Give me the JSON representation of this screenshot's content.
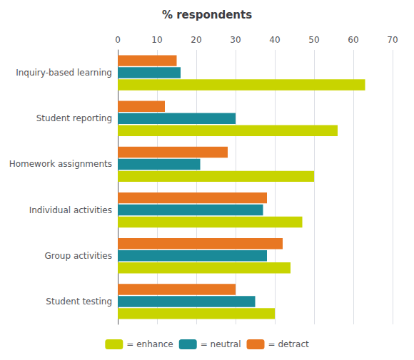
{
  "chart_data": {
    "type": "bar",
    "orientation": "horizontal",
    "title": "% respondents",
    "categories": [
      "Inquiry-based learning",
      "Student reporting",
      "Homework assignments",
      "Individual activities",
      "Group activities",
      "Student testing"
    ],
    "series": [
      {
        "name": "= detract",
        "color": "#e87722",
        "values": [
          15,
          12,
          28,
          38,
          42,
          30
        ]
      },
      {
        "name": "= neutral",
        "color": "#1a8a98",
        "values": [
          16,
          30,
          21,
          37,
          38,
          35
        ]
      },
      {
        "name": "= enhance",
        "color": "#c8d400",
        "values": [
          63,
          56,
          50,
          47,
          44,
          40
        ]
      }
    ],
    "xlim": [
      0,
      70
    ],
    "xticks": [
      0,
      10,
      20,
      30,
      40,
      50,
      60,
      70
    ],
    "grid": true,
    "legend": "bottom"
  }
}
